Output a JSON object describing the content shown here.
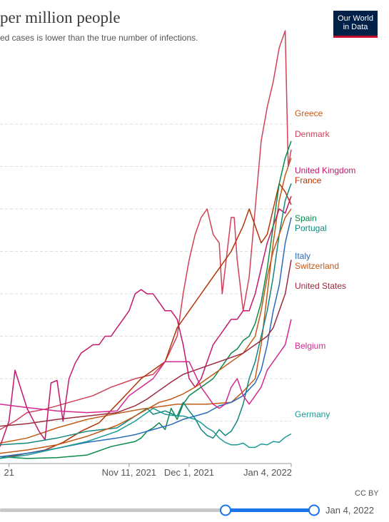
{
  "header": {
    "title": "per million people",
    "subtitle": "ed cases is lower than the true number of infections.",
    "logo_line1": "Our World",
    "logo_line2": "in Data"
  },
  "footer": {
    "license": "CC BY",
    "timeline_end_label": "Jan 4, 2022"
  },
  "colors": {
    "greece": "#c15c17",
    "denmark": "#d0415a",
    "united_kingdom": "#c2186b",
    "france": "#b13507",
    "spain": "#0a8a4a",
    "portugal": "#12877e",
    "italy": "#286bbb",
    "switzerland": "#c05917",
    "united_states": "#9a2a3e",
    "belgium": "#d1298f",
    "germany": "#1d9a94",
    "timeline_active": "#1a73e8"
  },
  "chart_data": {
    "type": "line",
    "title": "per million people",
    "x_tick_labels": [
      "21",
      "Nov 11, 2021",
      "Dec 1, 2021",
      "Jan 4, 2022"
    ],
    "x_ticks": [
      14,
      54,
      74,
      108
    ],
    "x_range": [
      11,
      108
    ],
    "y_range": [
      0,
      5000
    ],
    "y_gridlines": [
      500,
      1000,
      1500,
      2000,
      2500,
      3000,
      3500,
      4000
    ],
    "grid": true,
    "legend": "right-inline",
    "series": [
      {
        "name": "Greece",
        "key": "greece",
        "x": [
          11,
          20,
          30,
          40,
          50,
          58,
          62,
          70,
          80,
          88,
          92,
          96,
          98,
          100,
          102,
          104,
          106,
          108
        ],
        "y": [
          240,
          300,
          420,
          520,
          590,
          640,
          660,
          700,
          700,
          720,
          850,
          1000,
          1400,
          2000,
          2600,
          3100,
          3400,
          3600
        ]
      },
      {
        "name": "Denmark",
        "key": "denmark",
        "x": [
          11,
          16,
          20,
          26,
          34,
          42,
          48,
          56,
          62,
          66,
          70,
          72,
          74,
          76,
          78,
          80,
          82,
          84,
          85,
          86,
          88,
          89,
          90,
          92,
          94,
          96,
          98,
          100,
          102,
          104,
          106,
          107,
          108
        ],
        "y": [
          400,
          500,
          600,
          640,
          720,
          800,
          900,
          1000,
          1050,
          1200,
          1500,
          2000,
          2400,
          2700,
          2900,
          3000,
          2700,
          2600,
          2000,
          2300,
          2900,
          2900,
          2400,
          1800,
          2200,
          3000,
          3800,
          4200,
          4500,
          4900,
          5100,
          3500,
          3700
        ]
      },
      {
        "name": "United Kingdom",
        "key": "united_kingdom",
        "x": [
          11,
          14,
          16,
          20,
          24,
          26,
          28,
          30,
          32,
          34,
          36,
          38,
          40,
          42,
          44,
          46,
          48,
          50,
          52,
          54,
          56,
          58,
          60,
          62,
          64,
          66,
          68,
          70,
          72,
          74,
          76,
          78,
          80,
          82,
          84,
          86,
          88,
          90,
          92,
          94,
          96,
          98,
          100,
          102,
          104,
          106,
          108
        ],
        "y": [
          200,
          500,
          1100,
          650,
          380,
          280,
          950,
          980,
          500,
          1000,
          1180,
          1300,
          1350,
          1400,
          1400,
          1500,
          1500,
          1600,
          1700,
          1800,
          2000,
          2050,
          2000,
          2000,
          1900,
          1800,
          1800,
          1700,
          1400,
          1000,
          900,
          1000,
          1200,
          1400,
          1500,
          1600,
          1700,
          1700,
          1800,
          1800,
          2000,
          2300,
          2600,
          2800,
          3000,
          2950,
          3150
        ]
      },
      {
        "name": "France",
        "key": "france",
        "x": [
          11,
          14,
          20,
          26,
          32,
          38,
          44,
          50,
          54,
          58,
          62,
          66,
          70,
          74,
          78,
          80,
          82,
          84,
          86,
          88,
          90,
          92,
          94,
          96,
          98,
          100,
          102,
          104,
          106,
          108
        ],
        "y": [
          60,
          80,
          120,
          160,
          250,
          380,
          480,
          700,
          850,
          1000,
          1100,
          1200,
          1600,
          1800,
          2000,
          2100,
          2200,
          2300,
          2400,
          2500,
          2650,
          2800,
          3000,
          2800,
          2600,
          2700,
          3000,
          3300,
          3200,
          3050
        ]
      },
      {
        "name": "Spain",
        "key": "spain",
        "x": [
          11,
          20,
          30,
          40,
          48,
          56,
          58,
          60,
          62,
          64,
          66,
          68,
          70,
          72,
          74,
          76,
          78,
          80,
          82,
          84,
          86,
          88,
          90,
          92,
          94,
          96,
          98,
          100,
          102,
          104,
          106,
          108
        ],
        "y": [
          80,
          60,
          70,
          100,
          200,
          260,
          300,
          380,
          420,
          480,
          400,
          650,
          520,
          700,
          800,
          850,
          900,
          950,
          1000,
          1100,
          1200,
          1300,
          1350,
          1450,
          1500,
          1650,
          1900,
          2300,
          2800,
          3300,
          3600,
          3800
        ]
      },
      {
        "name": "Portugal",
        "key": "portugal",
        "x": [
          11,
          20,
          30,
          40,
          50,
          56,
          60,
          62,
          66,
          70,
          72,
          74,
          76,
          78,
          80,
          82,
          84,
          86,
          88,
          90,
          92,
          94,
          96,
          98,
          100,
          102,
          104,
          106,
          108
        ],
        "y": [
          220,
          240,
          300,
          380,
          420,
          560,
          650,
          580,
          620,
          560,
          720,
          620,
          530,
          400,
          330,
          300,
          400,
          330,
          380,
          500,
          700,
          1000,
          1200,
          1500,
          1800,
          2200,
          2700,
          3100,
          3300
        ]
      },
      {
        "name": "Italy",
        "key": "italy",
        "x": [
          11,
          20,
          30,
          40,
          50,
          56,
          60,
          64,
          68,
          72,
          76,
          80,
          84,
          88,
          92,
          96,
          98,
          100,
          102,
          104,
          106,
          108
        ],
        "y": [
          80,
          120,
          180,
          250,
          300,
          340,
          380,
          420,
          460,
          520,
          560,
          600,
          680,
          720,
          800,
          950,
          1100,
          1400,
          1800,
          2100,
          2600,
          2900
        ]
      },
      {
        "name": "Switzerland",
        "key": "switzerland",
        "x": [
          11,
          20,
          30,
          40,
          50,
          56,
          60,
          64,
          68,
          72,
          76,
          80,
          84,
          88,
          92,
          94,
          96,
          98,
          100,
          102,
          104,
          106,
          108
        ],
        "y": [
          120,
          160,
          220,
          320,
          450,
          560,
          640,
          720,
          760,
          820,
          900,
          1000,
          1100,
          1200,
          1300,
          1400,
          1500,
          1800,
          2200,
          2500,
          2700,
          2900,
          3000
        ]
      },
      {
        "name": "United States",
        "key": "united_states",
        "x": [
          11,
          20,
          30,
          40,
          50,
          56,
          60,
          64,
          68,
          72,
          76,
          80,
          84,
          88,
          92,
          94,
          96,
          98,
          100,
          102,
          104,
          106,
          108
        ],
        "y": [
          440,
          470,
          520,
          560,
          600,
          680,
          760,
          860,
          960,
          1050,
          1100,
          1150,
          1200,
          1250,
          1300,
          1350,
          1400,
          1450,
          1500,
          1600,
          1800,
          2000,
          2400
        ]
      },
      {
        "name": "Belgium",
        "key": "belgium",
        "x": [
          11,
          20,
          30,
          40,
          50,
          54,
          58,
          62,
          66,
          70,
          74,
          78,
          80,
          82,
          84,
          86,
          88,
          90,
          92,
          94,
          96,
          98,
          100,
          102,
          104,
          106,
          108
        ],
        "y": [
          700,
          660,
          620,
          600,
          620,
          800,
          900,
          1000,
          1200,
          1200,
          1200,
          900,
          800,
          700,
          650,
          700,
          900,
          1000,
          800,
          700,
          800,
          900,
          1100,
          1200,
          1300,
          1400,
          1700
        ]
      },
      {
        "name": "Germany",
        "key": "germany",
        "x": [
          11,
          20,
          30,
          40,
          50,
          56,
          60,
          62,
          66,
          70,
          72,
          74,
          76,
          78,
          80,
          82,
          84,
          86,
          88,
          90,
          92,
          94,
          96,
          98,
          100,
          102,
          104,
          106,
          108
        ],
        "y": [
          60,
          100,
          180,
          260,
          380,
          500,
          600,
          650,
          580,
          560,
          560,
          540,
          520,
          480,
          420,
          380,
          300,
          250,
          220,
          220,
          240,
          190,
          190,
          230,
          220,
          260,
          250,
          310,
          350
        ]
      }
    ]
  }
}
